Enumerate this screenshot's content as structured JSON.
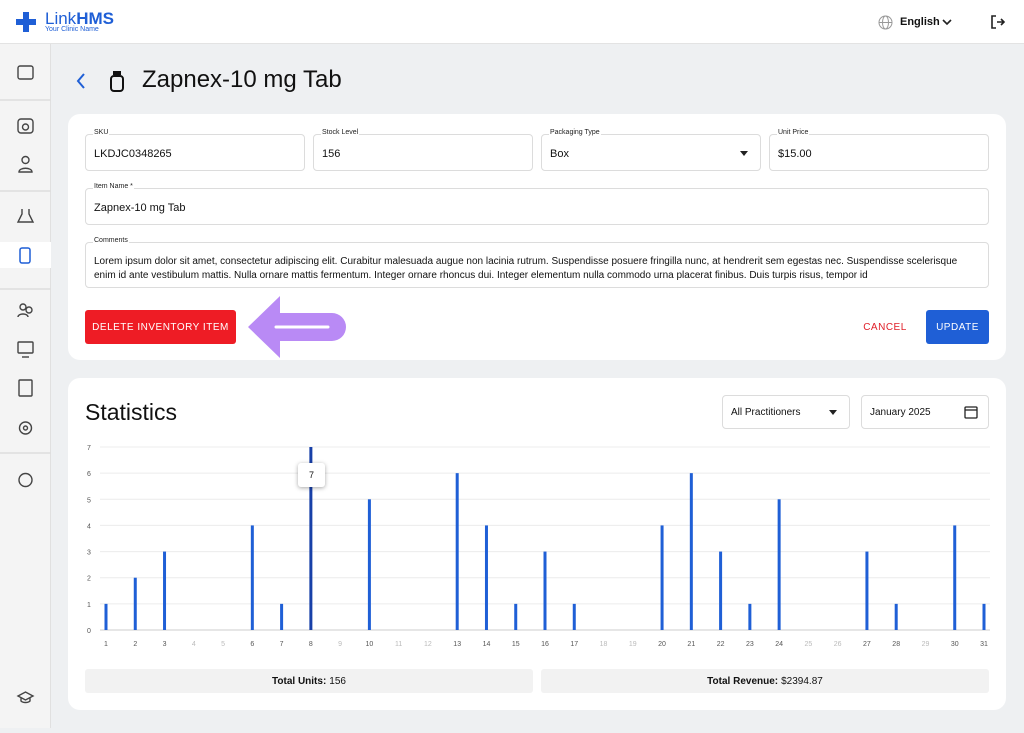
{
  "header": {
    "brand_name": "Link",
    "brand_suffix": "HMS",
    "tagline": "Your Clinic Name",
    "language": "English"
  },
  "page": {
    "title": "Zapnex-10 mg Tab"
  },
  "form": {
    "fields": [
      {
        "label": "SKU",
        "value": "LKDJC0348265"
      },
      {
        "label": "Stock Level",
        "value": "156"
      },
      {
        "label": "Packaging Type",
        "value": "Box"
      },
      {
        "label": "Unit Price",
        "value": "$15.00"
      }
    ],
    "item_name": {
      "label": "Item Name *",
      "value": "Zapnex-10 mg Tab"
    },
    "comments": {
      "label": "Comments",
      "value": "Lorem ipsum dolor sit amet, consectetur adipiscing elit. Curabitur malesuada augue non lacinia rutrum. Suspendisse posuere fringilla nunc, at hendrerit sem egestas nec. Suspendisse scelerisque enim id ante vestibulum mattis. Nulla ornare mattis fermentum. Integer ornare rhoncus dui. Integer elementum nulla commodo urna placerat finibus. Duis turpis risus, tempor id"
    },
    "delete_button": "DELETE INVENTORY ITEM",
    "cancel_button": "CANCEL",
    "update_button": "UPDATE"
  },
  "statistics": {
    "title": "Statistics",
    "practitioner_filter": "All Practitioners",
    "month": "January 2025",
    "chart_data": {
      "type": "bar",
      "categories": [
        "1",
        "2",
        "3",
        "4",
        "5",
        "6",
        "7",
        "8",
        "9",
        "10",
        "11",
        "12",
        "13",
        "14",
        "15",
        "16",
        "17",
        "18",
        "19",
        "20",
        "21",
        "22",
        "23",
        "24",
        "25",
        "26",
        "27",
        "28",
        "29",
        "30",
        "31"
      ],
      "values": [
        1,
        2,
        3,
        0,
        0,
        4,
        1,
        7,
        0,
        5,
        0,
        0,
        6,
        4,
        1,
        3,
        1,
        0,
        0,
        4,
        6,
        3,
        1,
        5,
        0,
        0,
        3,
        1,
        0,
        4,
        1
      ],
      "color": "#1f5fd6",
      "ylim": [
        0,
        7
      ],
      "yticks": [
        0,
        1,
        2,
        3,
        4,
        5,
        6,
        7
      ],
      "grid": true
    },
    "totals": [
      {
        "label": "Total Units:",
        "value": "156"
      },
      {
        "label": "Total Revenue:",
        "value": "$2394.87"
      }
    ]
  }
}
